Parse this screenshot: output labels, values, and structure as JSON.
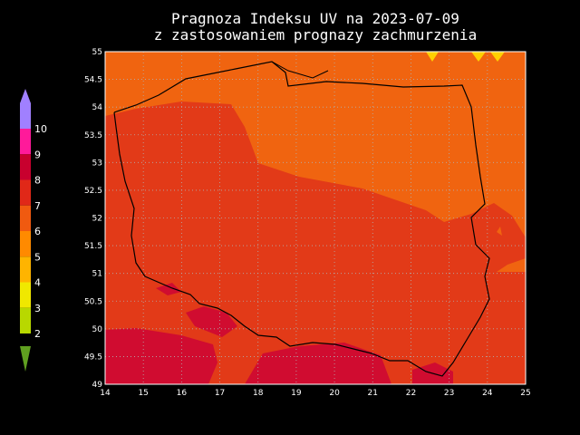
{
  "title": [
    "Pragnoza Indeksu UV na 2023-07-09",
    "z zastosowaniem prognazy zachmurzenia"
  ],
  "map": {
    "xlim": [
      14,
      25
    ],
    "ylim": [
      49,
      55
    ],
    "xticks": [
      14,
      15,
      16,
      17,
      18,
      19,
      20,
      21,
      22,
      23,
      24,
      25
    ],
    "yticks": [
      55,
      54.5,
      54,
      53.5,
      53,
      52.5,
      52,
      51.5,
      51,
      50.5,
      50,
      49.5,
      49
    ],
    "grid": true
  },
  "colorbar": {
    "levels": [
      10,
      9,
      8,
      7,
      6,
      5,
      4,
      3,
      2
    ],
    "colors": [
      "#a080ff",
      "#ff1a9a",
      "#c8002e",
      "#e02818",
      "#f05a10",
      "#ff8a00",
      "#ffb400",
      "#f0e800",
      "#b8d800"
    ]
  }
}
